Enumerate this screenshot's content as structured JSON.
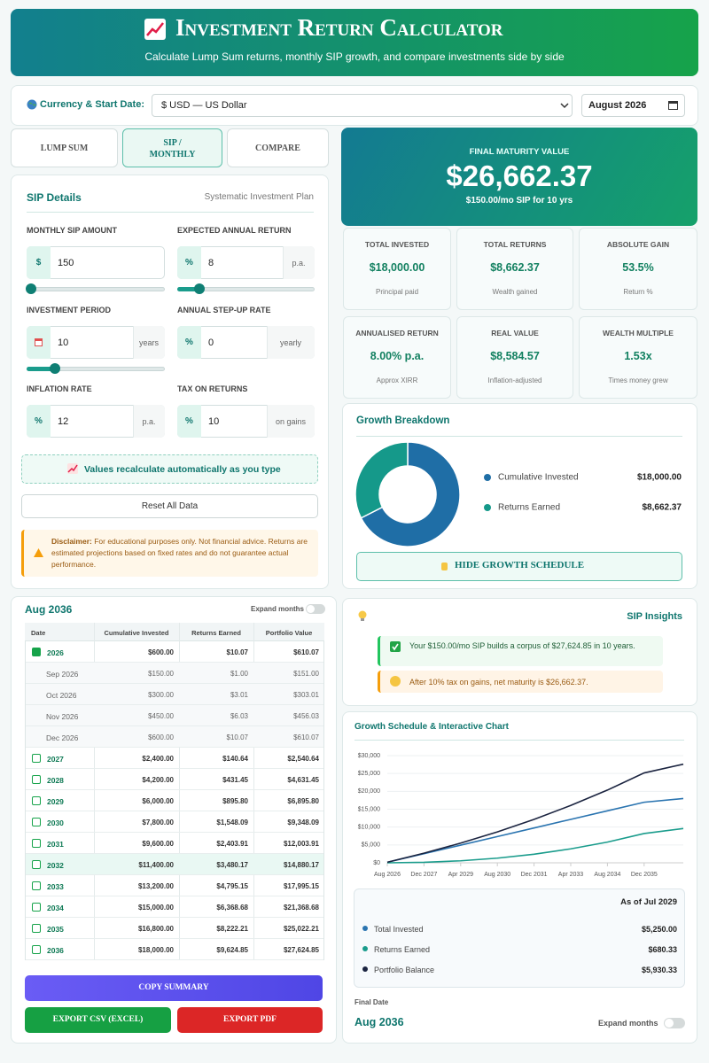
{
  "header": {
    "title": "Investment Return Calculator",
    "subtitle": "Calculate Lump Sum returns, monthly SIP growth, and compare investments side by side"
  },
  "settings": {
    "label": "Currency & Start Date:",
    "currency": "$ USD — US Dollar",
    "start_date": "August 2026"
  },
  "tabs": [
    "LUMP SUM",
    "SIP / MONTHLY",
    "COMPARE"
  ],
  "sip": {
    "title": "SIP Details",
    "subtitle": "Systematic Investment Plan",
    "fields": [
      {
        "label": "MONTHLY SIP AMOUNT",
        "prefix": "$",
        "value": "150"
      },
      {
        "label": "EXPECTED ANNUAL RETURN",
        "prefix": "%",
        "value": "8",
        "suffix": "p.a."
      },
      {
        "label": "INVESTMENT PERIOD",
        "value": "10",
        "suffix": "years"
      },
      {
        "label": "ANNUAL STEP-UP RATE",
        "prefix": "%",
        "value": "0",
        "suffix": "yearly"
      },
      {
        "label": "INFLATION RATE",
        "prefix": "%",
        "value": "12",
        "suffix": "p.a."
      },
      {
        "label": "TAX ON RETURNS",
        "prefix": "%",
        "value": "10",
        "suffix": "on gains"
      }
    ],
    "auto_note": "Values recalculate automatically as you type",
    "reset": "Reset All Data",
    "disclaimer_title": "Disclaimer:",
    "disclaimer": "For educational purposes only. Not financial advice. Returns are estimated projections based on fixed rates and do not guarantee actual performance."
  },
  "maturity": {
    "label": "FINAL MATURITY VALUE",
    "value": "$26,662.37",
    "sub": "$150.00/mo SIP for 10 yrs"
  },
  "stats": [
    {
      "label": "TOTAL INVESTED",
      "value": "$18,000.00",
      "sub": "Principal paid"
    },
    {
      "label": "TOTAL RETURNS",
      "value": "$8,662.37",
      "sub": "Wealth gained"
    },
    {
      "label": "ABSOLUTE GAIN",
      "value": "53.5%",
      "sub": "Return %"
    },
    {
      "label": "ANNUALISED RETURN",
      "value": "8.00% p.a.",
      "sub": "Approx XIRR"
    },
    {
      "label": "REAL VALUE",
      "value": "$8,584.57",
      "sub": "Inflation-adjusted"
    },
    {
      "label": "WEALTH MULTIPLE",
      "value": "1.53x",
      "sub": "Times money grew"
    }
  ],
  "breakdown": {
    "title": "Growth Breakdown",
    "button": "HIDE GROWTH SCHEDULE"
  },
  "schedule": {
    "title": "Aug 2036",
    "toggle": "Expand months",
    "columns": [
      "Date",
      "Cumulative Invested",
      "Returns Earned",
      "Portfolio Value"
    ],
    "rows": [
      [
        "2026",
        "$600.00",
        "$10.07",
        "$610.07"
      ],
      [
        "Sep 2026",
        "$150.00",
        "$1.00",
        "$151.00"
      ],
      [
        "Oct 2026",
        "$300.00",
        "$3.01",
        "$303.01"
      ],
      [
        "Nov 2026",
        "$450.00",
        "$6.03",
        "$456.03"
      ],
      [
        "Dec 2026",
        "$600.00",
        "$10.07",
        "$610.07"
      ],
      [
        "2027",
        "$2,400.00",
        "$140.64",
        "$2,540.64"
      ],
      [
        "2028",
        "$4,200.00",
        "$431.45",
        "$4,631.45"
      ],
      [
        "2029",
        "$6,000.00",
        "$895.80",
        "$6,895.80"
      ],
      [
        "2030",
        "$7,800.00",
        "$1,548.09",
        "$9,348.09"
      ],
      [
        "2031",
        "$9,600.00",
        "$2,403.91",
        "$12,003.91"
      ],
      [
        "2032",
        "$11,400.00",
        "$3,480.17",
        "$14,880.17"
      ],
      [
        "2033",
        "$13,200.00",
        "$4,795.15",
        "$17,995.15"
      ],
      [
        "2034",
        "$15,000.00",
        "$6,368.68",
        "$21,368.68"
      ],
      [
        "2035",
        "$16,800.00",
        "$8,222.21",
        "$25,022.21"
      ],
      [
        "2036",
        "$18,000.00",
        "$9,624.85",
        "$27,624.85"
      ]
    ]
  },
  "actions": {
    "copy": "COPY SUMMARY",
    "csv": "EXPORT CSV (EXCEL)",
    "pdf": "EXPORT PDF"
  },
  "insights": {
    "title": "SIP Insights",
    "items": [
      "Your $150.00/mo SIP builds a corpus of $27,624.85 in 10 years.",
      "After 10% tax on gains, net maturity is $26,662.37."
    ]
  },
  "chart_panel": {
    "title": "Growth Schedule & Interactive Chart",
    "tooltip": {
      "title": "As of Jul 2029",
      "items": [
        {
          "name": "Total Invested",
          "value": "$5,250.00"
        },
        {
          "name": "Returns Earned",
          "value": "$680.33"
        },
        {
          "name": "Portfolio Balance",
          "value": "$5,930.33"
        }
      ]
    },
    "final_label": "Final Date",
    "final_value": "Aug 2036",
    "toggle": "Expand months"
  },
  "chart_data": [
    {
      "type": "donut",
      "categories": [
        "Cumulative Invested",
        "Returns Earned"
      ],
      "values": [
        18000,
        8662.37
      ],
      "value_labels": [
        "$18,000.00",
        "$8,662.37"
      ],
      "colors": [
        "#1f6ea6",
        "#15998a"
      ]
    },
    {
      "type": "line",
      "x": [
        "Aug 2026",
        "Dec 2027",
        "Apr 2029",
        "Aug 2030",
        "Dec 2031",
        "Apr 2033",
        "Aug 2034",
        "Dec 2035",
        null
      ],
      "series": [
        {
          "color": "#2a74b0",
          "values": [
            150,
            2550,
            4950,
            7350,
            9750,
            12150,
            14550,
            16950,
            18000
          ]
        },
        {
          "color": "#1a9c8c",
          "values": [
            0,
            140,
            560,
            1300,
            2400,
            3900,
            5800,
            8200,
            9600
          ]
        },
        {
          "color": "#1b2440",
          "values": [
            150,
            2690,
            5510,
            8650,
            12150,
            16050,
            20350,
            25150,
            27600
          ]
        }
      ],
      "ylim": [
        0,
        30000
      ],
      "yticks": [
        {
          "value": 0,
          "label": "$0"
        },
        {
          "value": 5000,
          "label": "$5,000"
        },
        {
          "value": 10000,
          "label": "$10,000"
        },
        {
          "value": 15000,
          "label": "$15,000"
        },
        {
          "value": 20000,
          "label": "$20,000"
        },
        {
          "value": 25000,
          "label": "$25,000"
        },
        {
          "value": 30000,
          "label": "$30,000"
        }
      ],
      "grid": true
    }
  ]
}
